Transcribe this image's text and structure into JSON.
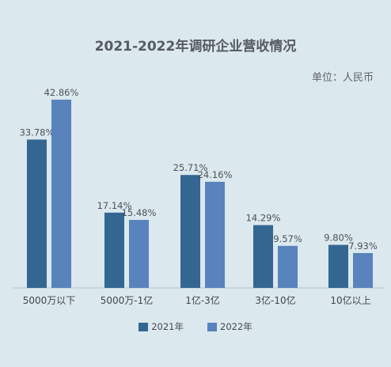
{
  "chart_data": {
    "type": "bar",
    "title": "2021-2022年调研企业营收情况",
    "unit": "单位：人民币",
    "categories": [
      "5000万以下",
      "5000万-1亿",
      "1亿-3亿",
      "3亿-10亿",
      "10亿以上"
    ],
    "series": [
      {
        "name": "2021年",
        "color": "#336791",
        "values": [
          33.78,
          17.14,
          25.71,
          14.29,
          9.8
        ]
      },
      {
        "name": "2022年",
        "color": "#5883bc",
        "values": [
          42.86,
          15.48,
          24.16,
          9.57,
          7.93
        ]
      }
    ],
    "value_labels": [
      [
        "33.78%",
        "17.14%",
        "25.71%",
        "14.29%",
        "9.80%"
      ],
      [
        "42.86%",
        "15.48%",
        "24.16%",
        "9.57%",
        "7.93%"
      ]
    ],
    "ylim": [
      0,
      42.86
    ],
    "grid": false,
    "legend_position": "bottom"
  }
}
